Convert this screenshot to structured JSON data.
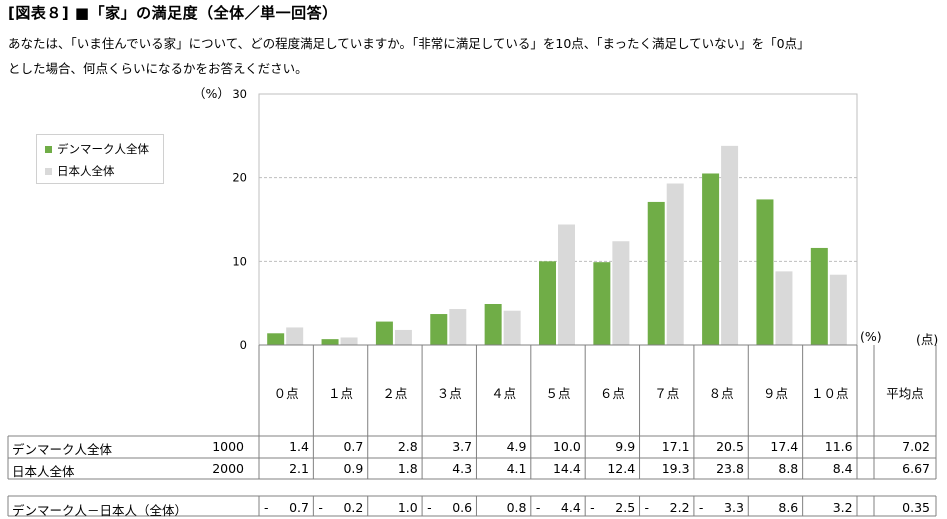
{
  "title": "[図表８] ■「家」の満足度（全体／単一回答）",
  "question_line1": "あなたは、「いま住んでいる家」について、どの程度満足していますか。「非常に満足している」を10点、「まったく満足していない」を「0点」",
  "question_line2": "とした場合、何点くらいになるかをお答えください。",
  "y_unit": "（%）",
  "table_unit_pct": "(%)",
  "table_unit_pt": "(点)",
  "avg_header": "平均点",
  "colors": {
    "denmark": "#70ad47",
    "japan": "#d9d9d9"
  },
  "chart_data": {
    "type": "bar",
    "categories": [
      "０点",
      "１点",
      "２点",
      "３点",
      "４点",
      "５点",
      "６点",
      "７点",
      "８点",
      "９点",
      "１０点"
    ],
    "series": [
      {
        "name": "デンマーク人全体",
        "n": "1000",
        "values": [
          1.4,
          0.7,
          2.8,
          3.7,
          4.9,
          10.0,
          9.9,
          17.1,
          20.5,
          17.4,
          11.6
        ],
        "avg": "7.02"
      },
      {
        "name": "日本人全体",
        "n": "2000",
        "values": [
          2.1,
          0.9,
          1.8,
          4.3,
          4.1,
          14.4,
          12.4,
          19.3,
          23.8,
          8.8,
          8.4
        ],
        "avg": "6.67"
      }
    ],
    "diff": {
      "name": "デンマーク人－日本人（全体）",
      "values": [
        -0.7,
        -0.2,
        1.0,
        -0.6,
        0.8,
        -4.4,
        -2.5,
        -2.2,
        -3.3,
        8.6,
        3.2
      ],
      "avg": "0.35"
    },
    "yticks": [
      "0",
      "10",
      "20",
      "30"
    ],
    "ylim": [
      0,
      30
    ],
    "grid": true,
    "legend": "top-left"
  }
}
